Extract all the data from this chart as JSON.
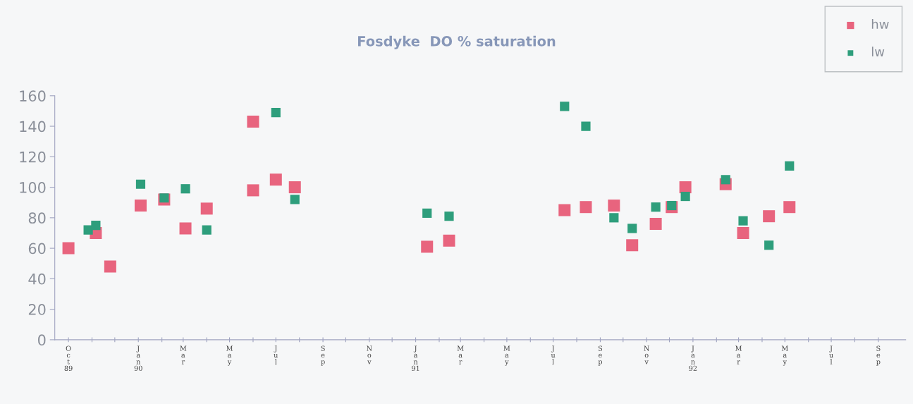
{
  "chart_data": {
    "type": "scatter",
    "title": "Fosdyke  DO % saturation",
    "series": [
      {
        "name": "hw",
        "color": "#e8647e",
        "x": [
          "1989-10-01",
          "1989-11-06",
          "1989-11-25",
          "1990-01-04",
          "1990-02-04",
          "1990-03-04",
          "1990-04-01",
          "1990-06-01",
          "1990-06-01",
          "1990-07-01",
          "1990-07-26",
          "1991-01-16",
          "1991-02-14",
          "1991-07-16",
          "1991-08-13",
          "1991-09-19",
          "1991-10-13",
          "1991-11-13",
          "1991-12-04",
          "1991-12-22",
          "1992-02-13",
          "1992-03-07",
          "1992-04-10",
          "1992-05-07"
        ],
        "values": [
          60,
          70,
          48,
          88,
          92,
          73,
          86,
          98,
          143,
          105,
          100,
          61,
          65,
          85,
          87,
          88,
          62,
          76,
          87,
          100,
          102,
          70,
          81,
          87
        ]
      },
      {
        "name": "lw",
        "color": "#2e9e7c",
        "x": [
          "1989-10-27",
          "1989-11-06",
          "1990-01-04",
          "1990-02-04",
          "1990-03-04",
          "1990-04-01",
          "1990-07-01",
          "1990-07-26",
          "1991-01-16",
          "1991-02-14",
          "1991-07-16",
          "1991-08-13",
          "1991-09-19",
          "1991-10-13",
          "1991-11-13",
          "1991-12-04",
          "1991-12-22",
          "1992-02-13",
          "1992-03-07",
          "1992-04-10",
          "1992-05-07"
        ],
        "values": [
          72,
          75,
          102,
          93,
          99,
          72,
          149,
          92,
          83,
          81,
          153,
          140,
          80,
          73,
          87,
          88,
          94,
          105,
          78,
          62,
          114
        ]
      }
    ],
    "xlim": [
      "1989-09-13",
      "1992-10-07"
    ],
    "xticks": [
      {
        "value": "1989-10-01",
        "label": "O\nc\nt\n89"
      },
      {
        "value": "1989-11-01",
        "label": null
      },
      {
        "value": "1989-12-01",
        "label": null
      },
      {
        "value": "1990-01-01",
        "label": "J\na\nn\n90"
      },
      {
        "value": "1990-02-01",
        "label": null
      },
      {
        "value": "1990-03-01",
        "label": "M\na\nr"
      },
      {
        "value": "1990-04-01",
        "label": null
      },
      {
        "value": "1990-05-01",
        "label": "M\na\ny"
      },
      {
        "value": "1990-06-01",
        "label": null
      },
      {
        "value": "1990-07-01",
        "label": "J\nu\nl"
      },
      {
        "value": "1990-08-01",
        "label": null
      },
      {
        "value": "1990-09-01",
        "label": "S\ne\np"
      },
      {
        "value": "1990-10-01",
        "label": null
      },
      {
        "value": "1990-11-01",
        "label": "N\no\nv"
      },
      {
        "value": "1990-12-01",
        "label": null
      },
      {
        "value": "1991-01-01",
        "label": "J\na\nn\n91"
      },
      {
        "value": "1991-02-01",
        "label": null
      },
      {
        "value": "1991-03-01",
        "label": "M\na\nr"
      },
      {
        "value": "1991-04-01",
        "label": null
      },
      {
        "value": "1991-05-01",
        "label": "M\na\ny"
      },
      {
        "value": "1991-06-01",
        "label": null
      },
      {
        "value": "1991-07-01",
        "label": "J\nu\nl"
      },
      {
        "value": "1991-08-01",
        "label": null
      },
      {
        "value": "1991-09-01",
        "label": "S\ne\np"
      },
      {
        "value": "1991-10-01",
        "label": null
      },
      {
        "value": "1991-11-01",
        "label": "N\no\nv"
      },
      {
        "value": "1991-12-01",
        "label": null
      },
      {
        "value": "1992-01-01",
        "label": "J\na\nn\n92"
      },
      {
        "value": "1992-02-01",
        "label": null
      },
      {
        "value": "1992-03-01",
        "label": "M\na\nr"
      },
      {
        "value": "1992-04-01",
        "label": null
      },
      {
        "value": "1992-05-01",
        "label": "M\na\ny"
      },
      {
        "value": "1992-06-01",
        "label": null
      },
      {
        "value": "1992-07-01",
        "label": "J\nu\nl"
      },
      {
        "value": "1992-08-01",
        "label": null
      },
      {
        "value": "1992-09-01",
        "label": "S\ne\np"
      }
    ],
    "ylim": [
      0,
      160
    ],
    "yticks": [
      0,
      20,
      40,
      60,
      80,
      100,
      120,
      140,
      160
    ],
    "grid": false,
    "legend": "top right",
    "marker": "square"
  }
}
